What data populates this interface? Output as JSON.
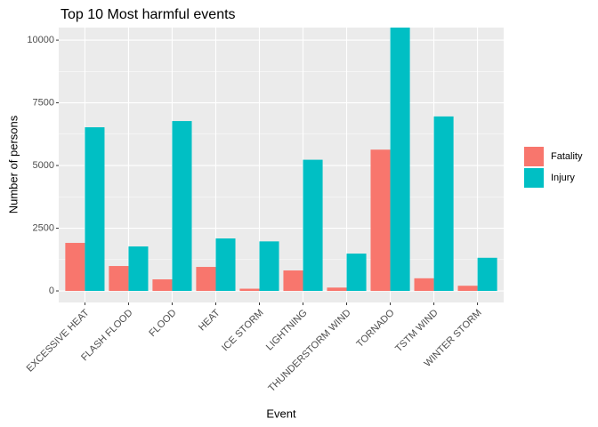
{
  "chart_data": {
    "type": "grouped-bar",
    "title": "Top 10 Most harmful events",
    "x_label": "Event",
    "y_label": "Number of persons",
    "categories": [
      "EXCESSIVE HEAT",
      "FLASH FLOOD",
      "FLOOD",
      "HEAT",
      "ICE STORM",
      "LIGHTNING",
      "THUNDERSTORM WIND",
      "TORNADO",
      "TSTM WIND",
      "WINTER STORM"
    ],
    "series": [
      {
        "name": "Fatality",
        "color": "#F8766D",
        "values": [
          1915,
          993,
          461,
          957,
          89,
          816,
          133,
          5633,
          504,
          206
        ]
      },
      {
        "name": "Injury",
        "color": "#00BFC4",
        "values": [
          6525,
          1773,
          6773,
          2092,
          1975,
          5230,
          1488,
          10500,
          6957,
          1321
        ]
      }
    ],
    "ylim": [
      -460,
      10500
    ],
    "yticks": [
      0,
      2500,
      5000,
      7500,
      10000
    ],
    "grid": true,
    "legend": "right"
  }
}
